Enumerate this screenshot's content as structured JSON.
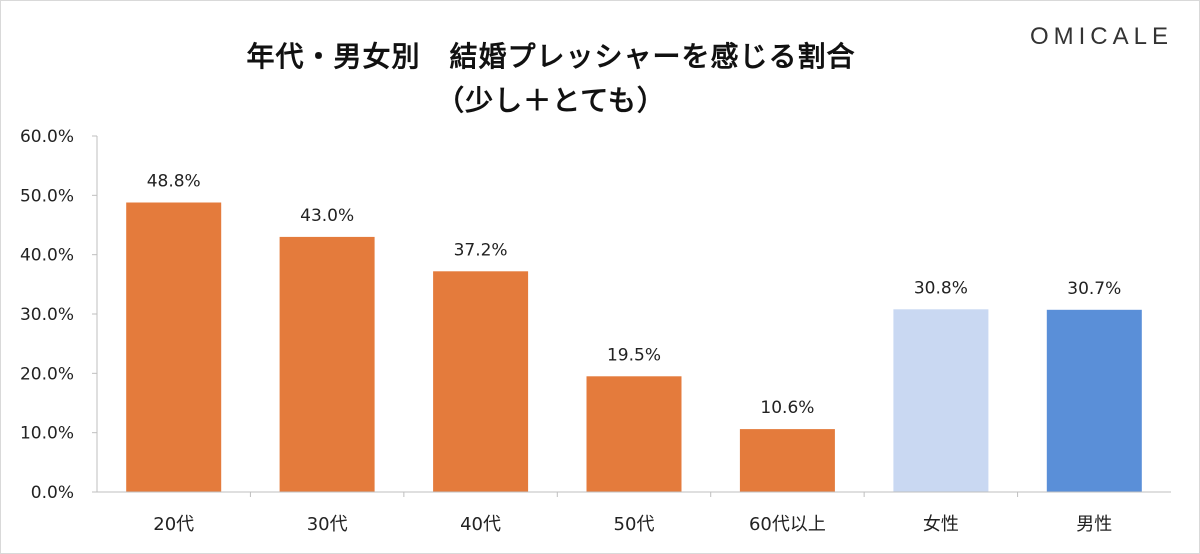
{
  "brand": {
    "logo_text": "OMICALE"
  },
  "chart_data": {
    "type": "bar",
    "title_line1": "年代・男女別　結婚プレッシャーを感じる割合",
    "title_line2": "（少し＋とても）",
    "categories": [
      "20代",
      "30代",
      "40代",
      "50代",
      "60代以上",
      "女性",
      "男性"
    ],
    "values": [
      48.8,
      43.0,
      37.2,
      19.5,
      10.6,
      30.8,
      30.7
    ],
    "data_labels": [
      "48.8%",
      "43.0%",
      "37.2%",
      "19.5%",
      "10.6%",
      "30.8%",
      "30.7%"
    ],
    "bar_colors": [
      "#E47B3C",
      "#E47B3C",
      "#E47B3C",
      "#E47B3C",
      "#E47B3C",
      "#C9D8F2",
      "#5A8FD8"
    ],
    "ylim": [
      0,
      60
    ],
    "yticks": [
      "0.0%",
      "10.0%",
      "20.0%",
      "30.0%",
      "40.0%",
      "50.0%",
      "60.0%"
    ],
    "grid": false,
    "legend": false
  }
}
